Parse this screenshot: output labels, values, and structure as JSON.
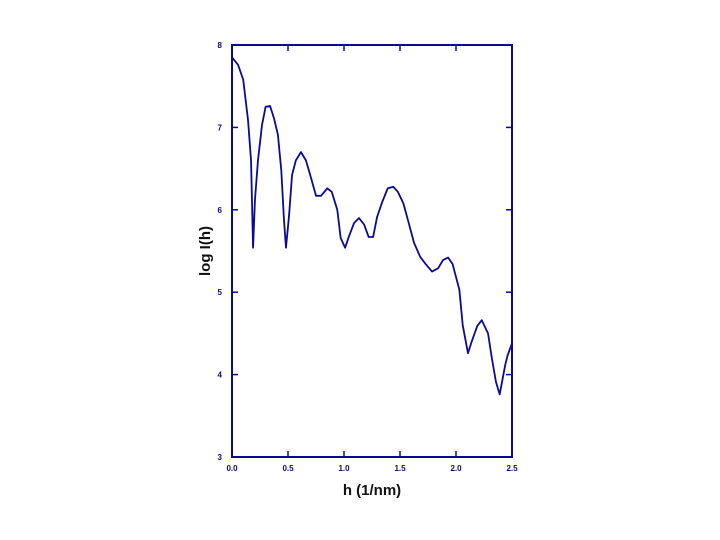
{
  "chart_data": {
    "type": "line",
    "xlabel": "h (1/nm)",
    "ylabel": "log I(h)",
    "color": "#0a0a96",
    "x": [
      0,
      0.054,
      0.1,
      0.143,
      0.17,
      0.188,
      0.205,
      0.232,
      0.268,
      0.3,
      0.34,
      0.375,
      0.41,
      0.44,
      0.464,
      0.482,
      0.51,
      0.536,
      0.57,
      0.616,
      0.66,
      0.705,
      0.75,
      0.795,
      0.85,
      0.89,
      0.94,
      0.97,
      1.01,
      1.045,
      1.09,
      1.134,
      1.18,
      1.22,
      1.26,
      1.295,
      1.34,
      1.39,
      1.44,
      1.48,
      1.53,
      1.57,
      1.625,
      1.68,
      1.73,
      1.786,
      1.84,
      1.884,
      1.93,
      1.97,
      2.03,
      2.06,
      2.107,
      2.14,
      2.19,
      2.23,
      2.286,
      2.32,
      2.357,
      2.39,
      2.44,
      2.46,
      2.5
    ],
    "values": [
      7.85,
      7.76,
      7.58,
      7.09,
      6.6,
      5.54,
      6.12,
      6.6,
      7.03,
      7.25,
      7.26,
      7.11,
      6.91,
      6.48,
      5.88,
      5.54,
      5.94,
      6.42,
      6.6,
      6.7,
      6.6,
      6.39,
      6.17,
      6.17,
      6.26,
      6.22,
      6.0,
      5.66,
      5.54,
      5.68,
      5.84,
      5.9,
      5.82,
      5.67,
      5.67,
      5.91,
      6.09,
      6.26,
      6.28,
      6.22,
      6.08,
      5.88,
      5.6,
      5.43,
      5.34,
      5.25,
      5.29,
      5.39,
      5.42,
      5.34,
      5.03,
      4.6,
      4.26,
      4.4,
      4.59,
      4.66,
      4.5,
      4.2,
      3.91,
      3.76,
      4.12,
      4.23,
      4.38
    ],
    "xlim": [
      0,
      2.5
    ],
    "ylim": [
      3,
      8
    ],
    "xticks": [
      {
        "value": 0,
        "label": "0.0"
      },
      0.5,
      {
        "value": 1,
        "label": "1.0"
      },
      1.5,
      {
        "value": 2,
        "label": "2.0"
      },
      2.5
    ],
    "yticks": [
      3,
      4,
      5,
      6,
      7,
      8
    ]
  }
}
